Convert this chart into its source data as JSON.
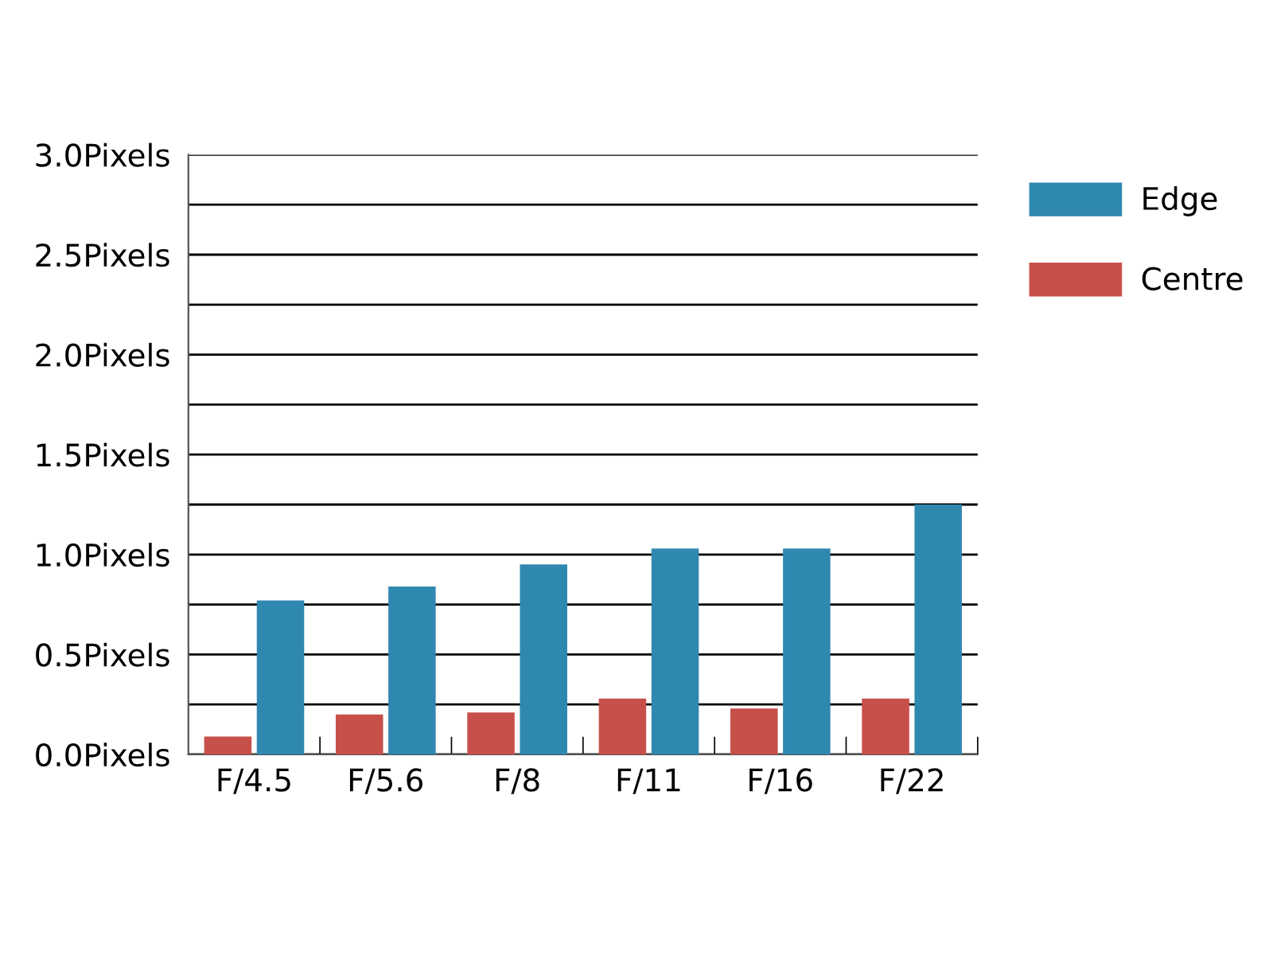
{
  "chart_data": {
    "type": "bar",
    "categories": [
      "F/4.5",
      "F/5.6",
      "F/8",
      "F/11",
      "F/16",
      "F/22"
    ],
    "series": [
      {
        "name": "Centre",
        "color": "#c8504a",
        "values": [
          0.09,
          0.2,
          0.21,
          0.28,
          0.23,
          0.28
        ]
      },
      {
        "name": "Edge",
        "color": "#2f88b0",
        "values": [
          0.77,
          0.84,
          0.95,
          1.03,
          1.03,
          1.25
        ]
      }
    ],
    "ylim": [
      0,
      3
    ],
    "yticks": [
      {
        "value": 0,
        "label": "0.0Pixels"
      },
      {
        "value": 0.25,
        "label": null
      },
      {
        "value": 0.5,
        "label": "0.5Pixels"
      },
      {
        "value": 0.75,
        "label": null
      },
      {
        "value": 1,
        "label": "1.0Pixels"
      },
      {
        "value": 1.25,
        "label": null
      },
      {
        "value": 1.5,
        "label": "1.5Pixels"
      },
      {
        "value": 1.75,
        "label": null
      },
      {
        "value": 2,
        "label": "2.0Pixels"
      },
      {
        "value": 2.25,
        "label": null
      },
      {
        "value": 2.5,
        "label": "2.5Pixels"
      },
      {
        "value": 2.75,
        "label": null
      },
      {
        "value": 3,
        "label": "3.0Pixels"
      }
    ],
    "grid": "y",
    "legend": "top right"
  }
}
